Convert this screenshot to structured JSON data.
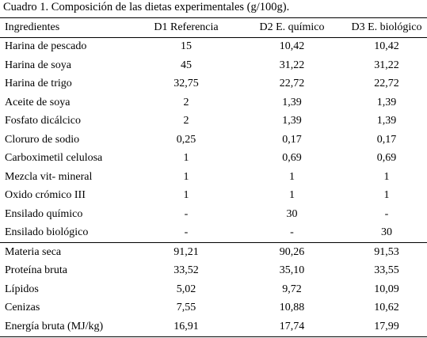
{
  "caption": "Cuadro 1. Composición de las dietas experimentales (g/100g).",
  "columns": [
    "Ingredientes",
    "D1 Referencia",
    "D2 E. químico",
    "D3 E. biológico"
  ],
  "rows_ingredients": [
    [
      "Harina de pescado",
      "15",
      "10,42",
      "10,42"
    ],
    [
      "Harina de soya",
      "45",
      "31,22",
      "31,22"
    ],
    [
      "Harina de trigo",
      "32,75",
      "22,72",
      "22,72"
    ],
    [
      "Aceite de soya",
      "2",
      "1,39",
      "1,39"
    ],
    [
      "Fosfato dicálcico",
      "2",
      "1,39",
      "1,39"
    ],
    [
      "Cloruro de sodio",
      "0,25",
      "0,17",
      "0,17"
    ],
    [
      "Carboximetil celulosa",
      "1",
      "0,69",
      "0,69"
    ],
    [
      "Mezcla vit-  mineral",
      "1",
      "1",
      "1"
    ],
    [
      "Oxido crómico III",
      "1",
      "1",
      "1"
    ],
    [
      "Ensilado químico",
      "-",
      "30",
      "-"
    ],
    [
      "Ensilado biológico",
      "-",
      "-",
      "30"
    ]
  ],
  "rows_composition": [
    [
      "Materia seca",
      "91,21",
      "90,26",
      "91,53"
    ],
    [
      "Proteína bruta",
      "33,52",
      "35,10",
      "33,55"
    ],
    [
      "Lípidos",
      "5,02",
      "9,72",
      "10,09"
    ],
    [
      "Cenizas",
      "7,55",
      "10,88",
      "10,62"
    ],
    [
      "Energía bruta (MJ/kg)",
      "16,91",
      "17,74",
      "17,99"
    ]
  ]
}
